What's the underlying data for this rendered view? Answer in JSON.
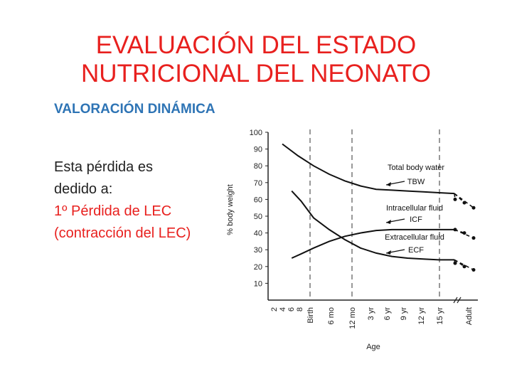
{
  "slide": {
    "title_line1": "EVALUACIÓN DEL ESTADO",
    "title_line2": "NUTRICIONAL DEL NEONATO",
    "subtitle": "VALORACIÓN DINÁMICA",
    "body": [
      "Esta pérdida es",
      "dedido a:",
      "1º Pérdida de LEC",
      "(contracción del LEC)"
    ],
    "colors": {
      "title": "#e8201e",
      "subtitle": "#2e74b5",
      "body": "#222222",
      "highlight": "#e8201e"
    }
  },
  "chart_data": {
    "type": "line",
    "ylabel": "% body weight",
    "xlabel": "Age",
    "ylim": [
      0,
      100
    ],
    "y_ticks": [
      10,
      20,
      30,
      40,
      50,
      60,
      70,
      80,
      90,
      100
    ],
    "x_ticks": [
      "2",
      "4",
      "6",
      "8",
      "Birth",
      "6 mo",
      "12 mo",
      "3 yr",
      "6 yr",
      "9 yr",
      "12 yr",
      "15 yr",
      "Adult"
    ],
    "vertical_markers": [
      "Birth",
      "12 mo",
      "15 yr"
    ],
    "series": [
      {
        "name": "Total body water / TBW",
        "label_main": "Total body water",
        "label_abbr": "TBW",
        "x": [
          0,
          1,
          2,
          3,
          4,
          5,
          6,
          7,
          8,
          9,
          10,
          11
        ],
        "y": [
          93,
          86,
          80,
          75,
          71,
          68,
          66,
          65.5,
          65,
          64.5,
          64,
          63.5
        ],
        "adult": [
          60,
          58,
          55
        ]
      },
      {
        "name": "Intracellular fluid / ICF",
        "label_main": "Intracellular fluid",
        "label_abbr": "ICF",
        "x": [
          0.6,
          1.2,
          2,
          3,
          4,
          5,
          6,
          7,
          8,
          9,
          10,
          11
        ],
        "y": [
          25,
          27.5,
          31,
          35,
          38,
          40,
          41.5,
          42,
          42,
          42,
          42,
          42
        ],
        "adult": [
          42,
          40,
          37
        ]
      },
      {
        "name": "Extracellular fluid / ECF",
        "label_main": "Extracellular fluid",
        "label_abbr": "ECF",
        "x": [
          0.6,
          1.2,
          2,
          3,
          4,
          5,
          6,
          7,
          8,
          9,
          10,
          11
        ],
        "y": [
          65,
          59,
          49,
          42,
          36,
          31,
          28,
          26,
          25,
          24.5,
          24,
          24
        ],
        "adult": [
          22,
          20,
          18
        ]
      }
    ]
  }
}
